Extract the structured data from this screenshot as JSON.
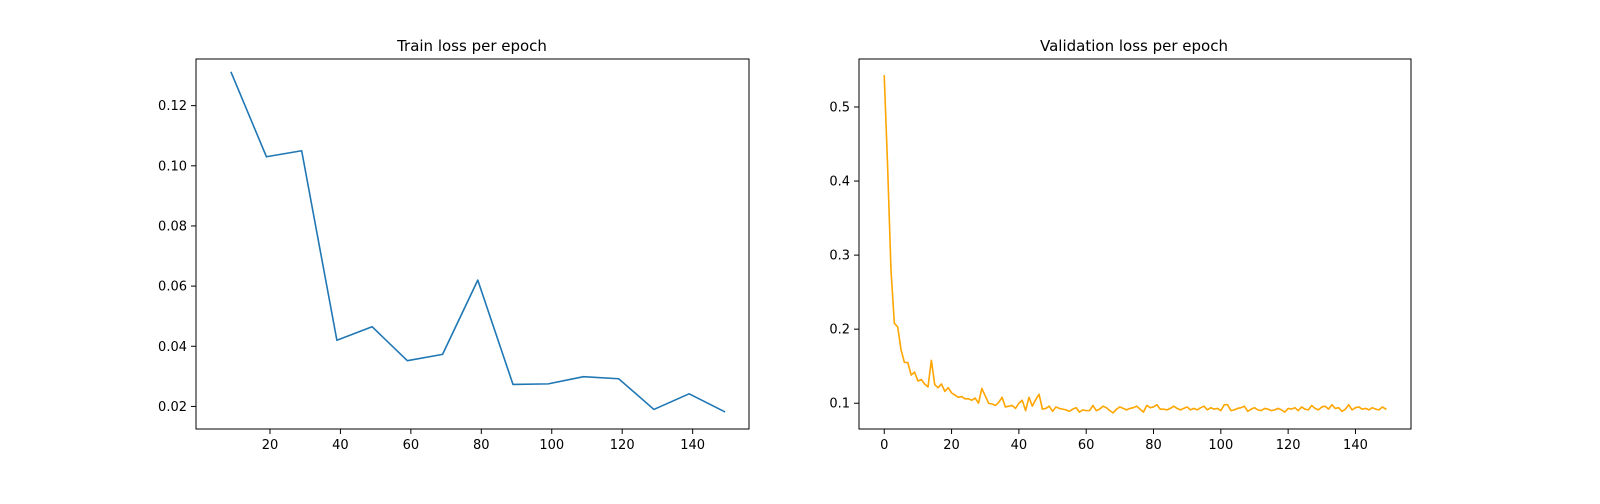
{
  "figure": {
    "background": "#ffffff"
  },
  "chart_data": [
    {
      "type": "line",
      "title": "Train loss per epoch",
      "xlabel": "",
      "ylabel": "",
      "xlim": [
        -1,
        156
      ],
      "ylim": [
        0.0125,
        0.1355
      ],
      "grid": false,
      "legend": "none",
      "xticks": [
        20,
        40,
        60,
        80,
        100,
        120,
        140
      ],
      "xtick_labels": [
        "20",
        "40",
        "60",
        "80",
        "100",
        "120",
        "140"
      ],
      "yticks": [
        0.02,
        0.04,
        0.06,
        0.08,
        0.1,
        0.12
      ],
      "ytick_labels": [
        "0.02",
        "0.04",
        "0.06",
        "0.08",
        "0.10",
        "0.12"
      ],
      "series": [
        {
          "color": "#1f77b4",
          "x": [
            9,
            19,
            29,
            39,
            49,
            59,
            69,
            79,
            89,
            99,
            109,
            119,
            129,
            139,
            149
          ],
          "y": [
            0.131,
            0.103,
            0.105,
            0.042,
            0.0465,
            0.0352,
            0.0373,
            0.062,
            0.0273,
            0.0275,
            0.0299,
            0.0292,
            0.019,
            0.0242,
            0.0183
          ]
        }
      ]
    },
    {
      "type": "line",
      "title": "Validation loss per epoch",
      "xlabel": "",
      "ylabel": "",
      "xlim": [
        -7.5,
        156.5
      ],
      "ylim": [
        0.0652,
        0.5648
      ],
      "grid": false,
      "legend": "none",
      "xticks": [
        0,
        20,
        40,
        60,
        80,
        100,
        120,
        140
      ],
      "xtick_labels": [
        "0",
        "20",
        "40",
        "60",
        "80",
        "100",
        "120",
        "140"
      ],
      "yticks": [
        0.1,
        0.2,
        0.3,
        0.4,
        0.5
      ],
      "ytick_labels": [
        "0.1",
        "0.2",
        "0.3",
        "0.4",
        "0.5"
      ],
      "series": [
        {
          "color": "#ffa500",
          "x": [
            0,
            1,
            2,
            3,
            4,
            5,
            6,
            7,
            8,
            9,
            10,
            11,
            12,
            13,
            14,
            15,
            16,
            17,
            18,
            19,
            20,
            21,
            22,
            23,
            24,
            25,
            26,
            27,
            28,
            29,
            30,
            31,
            32,
            33,
            34,
            35,
            36,
            37,
            38,
            39,
            40,
            41,
            42,
            43,
            44,
            45,
            46,
            47,
            48,
            49,
            50,
            51,
            52,
            53,
            54,
            55,
            56,
            57,
            58,
            59,
            60,
            61,
            62,
            63,
            64,
            65,
            66,
            67,
            68,
            69,
            70,
            71,
            72,
            73,
            74,
            75,
            76,
            77,
            78,
            79,
            80,
            81,
            82,
            83,
            84,
            85,
            86,
            87,
            88,
            89,
            90,
            91,
            92,
            93,
            94,
            95,
            96,
            97,
            98,
            99,
            100,
            101,
            102,
            103,
            104,
            105,
            106,
            107,
            108,
            109,
            110,
            111,
            112,
            113,
            114,
            115,
            116,
            117,
            118,
            119,
            120,
            121,
            122,
            123,
            124,
            125,
            126,
            127,
            128,
            129,
            130,
            131,
            132,
            133,
            134,
            135,
            136,
            137,
            138,
            139,
            140,
            141,
            142,
            143,
            144,
            145,
            146,
            147,
            148,
            149
          ],
          "y": [
            0.542,
            0.42,
            0.28,
            0.208,
            0.203,
            0.172,
            0.155,
            0.155,
            0.138,
            0.142,
            0.13,
            0.132,
            0.126,
            0.122,
            0.158,
            0.125,
            0.121,
            0.126,
            0.116,
            0.121,
            0.114,
            0.111,
            0.108,
            0.109,
            0.106,
            0.106,
            0.104,
            0.107,
            0.1,
            0.12,
            0.11,
            0.1,
            0.099,
            0.097,
            0.101,
            0.108,
            0.095,
            0.096,
            0.097,
            0.093,
            0.1,
            0.104,
            0.09,
            0.108,
            0.096,
            0.105,
            0.112,
            0.092,
            0.093,
            0.096,
            0.089,
            0.095,
            0.093,
            0.092,
            0.091,
            0.089,
            0.092,
            0.094,
            0.088,
            0.091,
            0.09,
            0.09,
            0.097,
            0.09,
            0.092,
            0.096,
            0.094,
            0.09,
            0.087,
            0.092,
            0.095,
            0.093,
            0.091,
            0.093,
            0.094,
            0.096,
            0.092,
            0.088,
            0.097,
            0.094,
            0.095,
            0.098,
            0.092,
            0.092,
            0.091,
            0.093,
            0.096,
            0.093,
            0.091,
            0.093,
            0.095,
            0.091,
            0.093,
            0.091,
            0.094,
            0.096,
            0.091,
            0.094,
            0.092,
            0.093,
            0.09,
            0.098,
            0.098,
            0.09,
            0.091,
            0.093,
            0.094,
            0.096,
            0.089,
            0.092,
            0.094,
            0.091,
            0.09,
            0.093,
            0.092,
            0.09,
            0.091,
            0.093,
            0.091,
            0.088,
            0.093,
            0.092,
            0.094,
            0.09,
            0.095,
            0.092,
            0.091,
            0.097,
            0.093,
            0.091,
            0.095,
            0.096,
            0.092,
            0.098,
            0.093,
            0.094,
            0.089,
            0.092,
            0.098,
            0.091,
            0.094,
            0.095,
            0.092,
            0.093,
            0.091,
            0.094,
            0.092,
            0.091,
            0.095,
            0.092
          ]
        }
      ]
    }
  ]
}
